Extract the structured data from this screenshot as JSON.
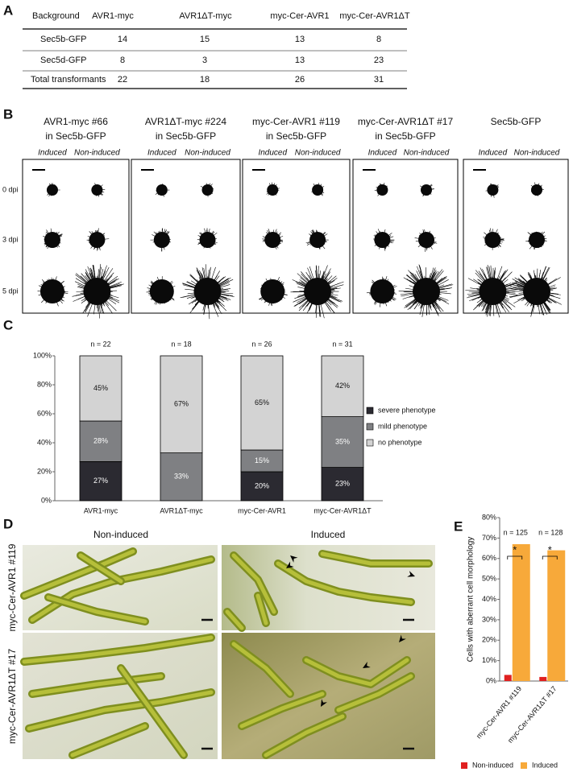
{
  "panel_labels": [
    "A",
    "B",
    "C",
    "D",
    "E"
  ],
  "table": {
    "header": [
      "Background",
      "AVR1-myc",
      "AVR1ΔT-myc",
      "myc-Cer-AVR1",
      "myc-Cer-AVR1ΔT"
    ],
    "rows": [
      [
        "Sec5b-GFP",
        14,
        15,
        13,
        8
      ],
      [
        "Sec5d-GFP",
        8,
        3,
        13,
        23
      ],
      [
        "Total transformants",
        22,
        18,
        26,
        31
      ]
    ]
  },
  "colonies": {
    "strains": [
      [
        "AVR1-myc #66",
        "in Sec5b-GFP"
      ],
      [
        "AVR1ΔT-myc #224",
        "in Sec5b-GFP"
      ],
      [
        "myc-Cer-AVR1  #119",
        "in Sec5b-GFP"
      ],
      [
        "myc-Cer-AVR1ΔT #17",
        "in Sec5b-GFP"
      ],
      [
        "Sec5b-GFP"
      ]
    ],
    "conditions": [
      "Induced",
      "Non-induced"
    ],
    "timepoints": [
      "0 dpi",
      "3 dpi",
      "5 dpi"
    ]
  },
  "micrographs": {
    "columns": [
      "Non-induced",
      "Induced"
    ],
    "rows": [
      "myc-Cer-AVR1 #119",
      "myc-Cer-AVR1ΔT #17"
    ]
  },
  "chart_data": [
    {
      "type": "bar",
      "stacked": true,
      "categories": [
        "AVR1-myc",
        "AVR1ΔT-myc",
        "myc-Cer-AVR1",
        "myc-Cer-AVR1ΔT"
      ],
      "annotations": [
        "n = 22",
        "n = 18",
        "n = 26",
        "n = 31"
      ],
      "series": [
        {
          "name": "severe phenotype",
          "color": "#2b2a31",
          "values": [
            27,
            0,
            20,
            23
          ],
          "value_labels": [
            "27%",
            null,
            "20%",
            "23%"
          ]
        },
        {
          "name": "mild phenotype",
          "color": "#7f8083",
          "values": [
            28,
            33,
            15,
            35
          ],
          "value_labels": [
            "28%",
            "33%",
            "15%",
            "35%"
          ]
        },
        {
          "name": "no phenotype",
          "color": "#d3d3d3",
          "values": [
            45,
            67,
            65,
            42
          ],
          "value_labels": [
            "45%",
            "67%",
            "65%",
            "42%"
          ]
        }
      ],
      "ylim": [
        0,
        100
      ],
      "yticks": [
        {
          "value": 0,
          "label": "0%"
        },
        {
          "value": 20,
          "label": "20%"
        },
        {
          "value": 40,
          "label": "40%"
        },
        {
          "value": 60,
          "label": "60%"
        },
        {
          "value": 80,
          "label": "80%"
        },
        {
          "value": 100,
          "label": "100%"
        }
      ],
      "grid": false,
      "legend": "right"
    },
    {
      "type": "bar",
      "stacked": false,
      "y_label": "Cells with aberrant cell morphology",
      "categories": [
        "myc-Cer-AVR1 #119",
        "myc-Cer-AVR1ΔT #17"
      ],
      "annotations": [
        "n = 125",
        "n = 128"
      ],
      "significance": [
        "*",
        "*"
      ],
      "series": [
        {
          "name": "Non-induced",
          "color": "#e02020",
          "values": [
            3,
            2
          ]
        },
        {
          "name": "Induced",
          "color": "#f7a93a",
          "values": [
            67,
            64
          ]
        }
      ],
      "ylim": [
        0,
        80
      ],
      "yticks": [
        {
          "value": 0,
          "label": "0%"
        },
        {
          "value": 10,
          "label": "10%"
        },
        {
          "value": 20,
          "label": "20%"
        },
        {
          "value": 30,
          "label": "30%"
        },
        {
          "value": 40,
          "label": "40%"
        },
        {
          "value": 50,
          "label": "50%"
        },
        {
          "value": 60,
          "label": "60%"
        },
        {
          "value": 70,
          "label": "70%"
        },
        {
          "value": 80,
          "label": "80%"
        }
      ],
      "grid": false,
      "legend": "bottom"
    }
  ]
}
